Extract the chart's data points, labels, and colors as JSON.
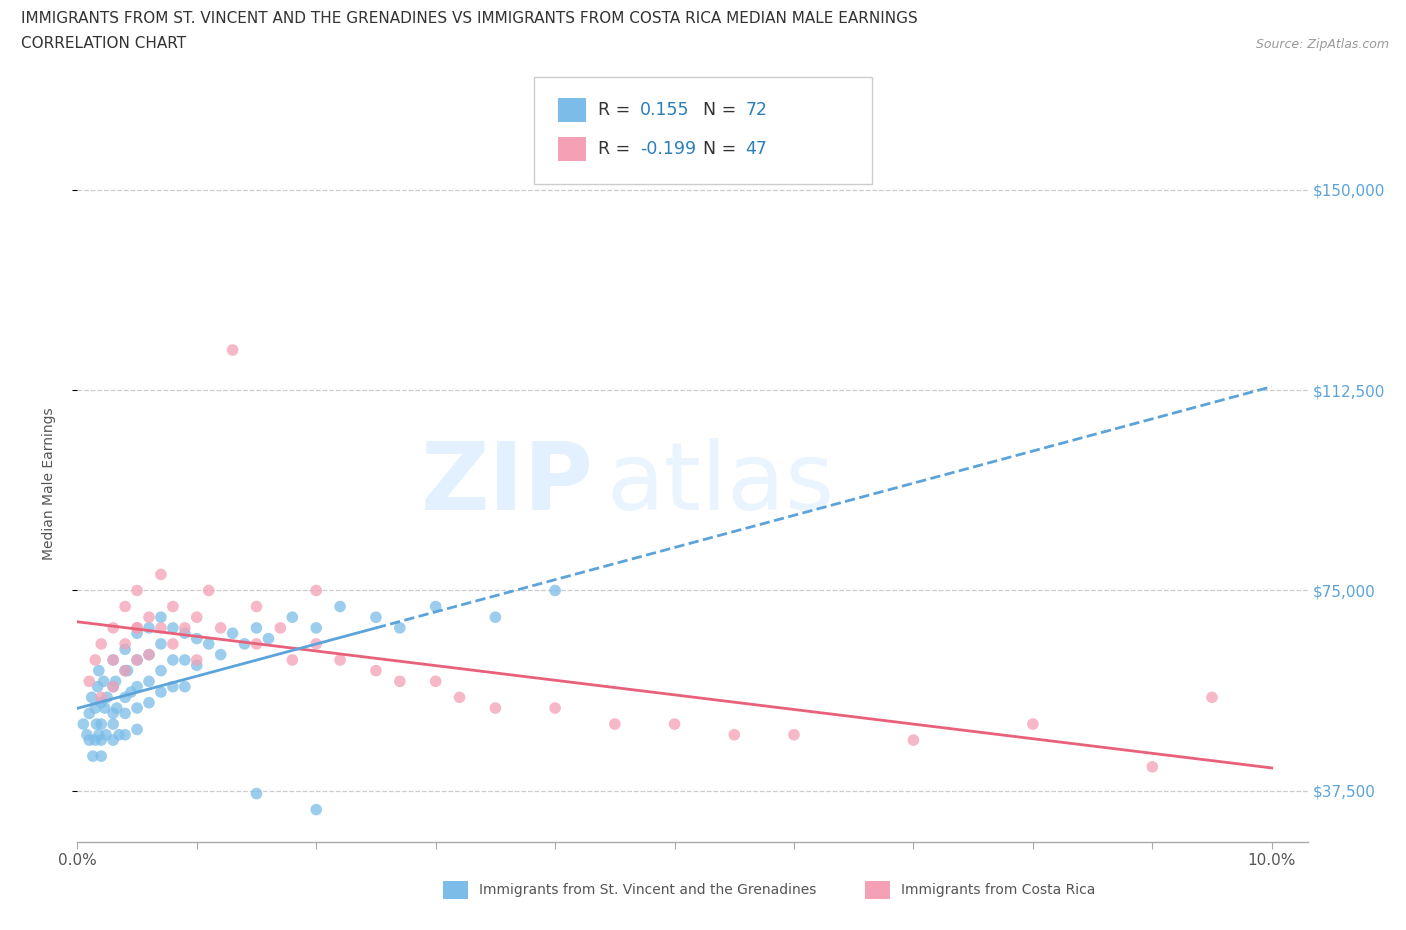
{
  "title_line1": "IMMIGRANTS FROM ST. VINCENT AND THE GRENADINES VS IMMIGRANTS FROM COSTA RICA MEDIAN MALE EARNINGS",
  "title_line2": "CORRELATION CHART",
  "source_text": "Source: ZipAtlas.com",
  "ylabel": "Median Male Earnings",
  "xlim": [
    0.0,
    0.103
  ],
  "ylim": [
    28000,
    162000
  ],
  "yticks_right": [
    37500,
    75000,
    112500,
    150000
  ],
  "ytick_labels_right": [
    "$37,500",
    "$75,000",
    "$112,500",
    "$150,000"
  ],
  "series1_name": "Immigrants from St. Vincent and the Grenadines",
  "series1_color": "#7BBDE8",
  "series2_name": "Immigrants from Costa Rica",
  "series2_color": "#F4A0B5",
  "series1_R": 0.155,
  "series1_N": 72,
  "series2_R": -0.199,
  "series2_N": 47,
  "trend1_color": "#5BA3D9",
  "trend2_color": "#E8607A",
  "watermark_ZIP": "ZIP",
  "watermark_atlas": "atlas",
  "bg_color": "#FFFFFF",
  "grid_color": "#CCCCCC",
  "legend_text_color": "#333333",
  "legend_val_color": "#2980B9",
  "series1_x": [
    0.0005,
    0.0008,
    0.001,
    0.001,
    0.0012,
    0.0013,
    0.0015,
    0.0015,
    0.0016,
    0.0017,
    0.0018,
    0.0018,
    0.002,
    0.002,
    0.002,
    0.002,
    0.0022,
    0.0023,
    0.0024,
    0.0025,
    0.003,
    0.003,
    0.003,
    0.003,
    0.003,
    0.0032,
    0.0033,
    0.0035,
    0.004,
    0.004,
    0.004,
    0.004,
    0.004,
    0.0042,
    0.0045,
    0.005,
    0.005,
    0.005,
    0.005,
    0.005,
    0.006,
    0.006,
    0.006,
    0.006,
    0.007,
    0.007,
    0.007,
    0.007,
    0.008,
    0.008,
    0.008,
    0.009,
    0.009,
    0.009,
    0.01,
    0.01,
    0.011,
    0.012,
    0.013,
    0.014,
    0.015,
    0.016,
    0.018,
    0.02,
    0.022,
    0.025,
    0.027,
    0.03,
    0.035,
    0.04,
    0.015,
    0.02
  ],
  "series1_y": [
    50000,
    48000,
    52000,
    47000,
    55000,
    44000,
    53000,
    47000,
    50000,
    57000,
    48000,
    60000,
    54000,
    50000,
    47000,
    44000,
    58000,
    53000,
    48000,
    55000,
    62000,
    57000,
    52000,
    50000,
    47000,
    58000,
    53000,
    48000,
    64000,
    60000,
    55000,
    52000,
    48000,
    60000,
    56000,
    67000,
    62000,
    57000,
    53000,
    49000,
    68000,
    63000,
    58000,
    54000,
    70000,
    65000,
    60000,
    56000,
    68000,
    62000,
    57000,
    67000,
    62000,
    57000,
    66000,
    61000,
    65000,
    63000,
    67000,
    65000,
    68000,
    66000,
    70000,
    68000,
    72000,
    70000,
    68000,
    72000,
    70000,
    75000,
    37000,
    34000
  ],
  "series2_x": [
    0.001,
    0.0015,
    0.002,
    0.002,
    0.003,
    0.003,
    0.003,
    0.004,
    0.004,
    0.004,
    0.005,
    0.005,
    0.005,
    0.006,
    0.006,
    0.007,
    0.007,
    0.008,
    0.008,
    0.009,
    0.01,
    0.01,
    0.011,
    0.012,
    0.013,
    0.015,
    0.015,
    0.017,
    0.018,
    0.02,
    0.022,
    0.025,
    0.027,
    0.03,
    0.032,
    0.035,
    0.04,
    0.045,
    0.05,
    0.055,
    0.06,
    0.07,
    0.08,
    0.09,
    0.095,
    0.005,
    0.02
  ],
  "series2_y": [
    58000,
    62000,
    65000,
    55000,
    68000,
    62000,
    57000,
    72000,
    65000,
    60000,
    75000,
    68000,
    62000,
    70000,
    63000,
    78000,
    68000,
    65000,
    72000,
    68000,
    70000,
    62000,
    75000,
    68000,
    120000,
    72000,
    65000,
    68000,
    62000,
    65000,
    62000,
    60000,
    58000,
    58000,
    55000,
    53000,
    53000,
    50000,
    50000,
    48000,
    48000,
    47000,
    50000,
    42000,
    55000,
    68000,
    75000
  ]
}
